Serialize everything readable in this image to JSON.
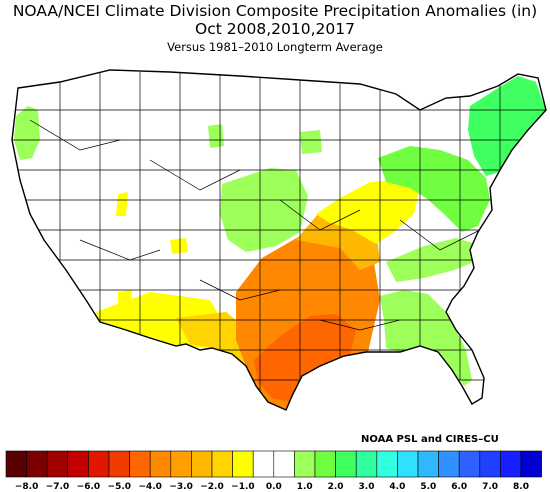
{
  "title_line1": "NOAA/NCEI Climate Division Composite Precipitation Anomalies (in)",
  "title_line2": "Oct   2008,2010,2017",
  "title_line3": "Versus 1981–2010 Longterm Average",
  "credit": "NOAA PSL and CIRES–CU",
  "legend": {
    "colors": [
      "#5a0000",
      "#7a0000",
      "#a00000",
      "#c40000",
      "#e01800",
      "#f03c00",
      "#ff6600",
      "#ff8800",
      "#ffa000",
      "#ffb800",
      "#ffd400",
      "#ffff00",
      "#ffffff",
      "#ffffff",
      "#9cff5a",
      "#70ff40",
      "#40ff60",
      "#30ffa0",
      "#30ffe0",
      "#30e0ff",
      "#30b8ff",
      "#3090ff",
      "#3060ff",
      "#2040ff",
      "#1820ff",
      "#0000d0"
    ],
    "labels": [
      "−8.0",
      "−7.0",
      "−6.0",
      "−5.0",
      "−4.0",
      "−3.0",
      "−2.0",
      "−1.0",
      "0.0",
      "1.0",
      "2.0",
      "3.0",
      "4.0",
      "5.0",
      "6.0",
      "7.0",
      "8.0"
    ]
  },
  "map": {
    "regions": [
      {
        "name": "pacific-northwest-coast",
        "color": "#9cff5a"
      },
      {
        "name": "northeast",
        "color": "#70ff40"
      },
      {
        "name": "new-england",
        "color": "#40ff60"
      },
      {
        "name": "northern-plains",
        "color": "#9cff5a"
      },
      {
        "name": "ohio-valley",
        "color": "#ffff00"
      },
      {
        "name": "appalachians",
        "color": "#9cff5a"
      },
      {
        "name": "mid-south",
        "color": "#ffb800"
      },
      {
        "name": "south-central",
        "color": "#ff8800"
      },
      {
        "name": "texas-louisiana-core",
        "color": "#ff6600"
      },
      {
        "name": "southwest-texas",
        "color": "#ffd400"
      },
      {
        "name": "southeast-coast",
        "color": "#9cff5a"
      },
      {
        "name": "southwest",
        "color": "#ffff00"
      }
    ]
  }
}
